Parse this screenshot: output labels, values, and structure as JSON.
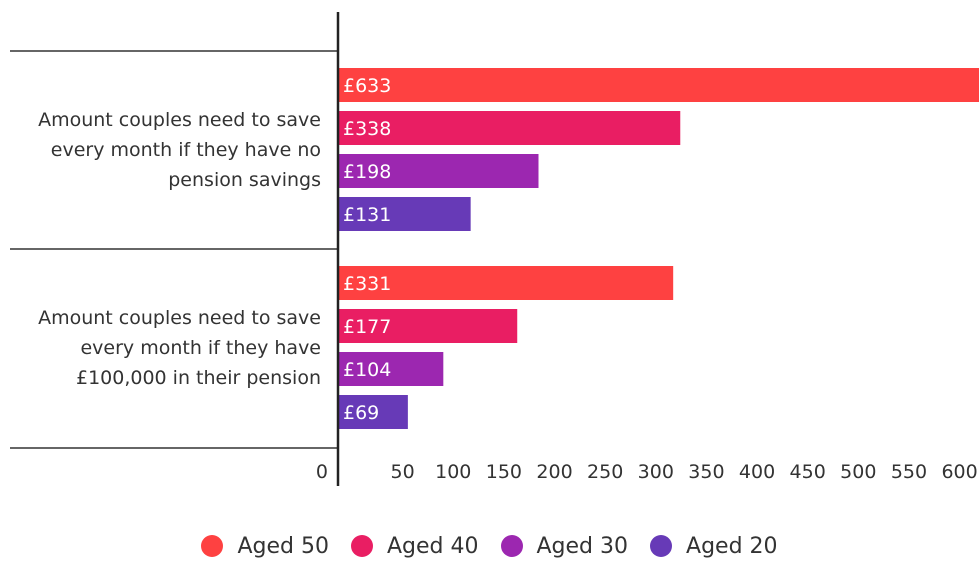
{
  "chart_data": {
    "type": "bar",
    "orientation": "horizontal",
    "categories": [
      "Amount couples need to save every month if they have no pension savings",
      "Amount couples need to save every month if they have £100,000 in their pension"
    ],
    "category_lines": [
      [
        "Amount couples need to save",
        "every month if they have no",
        "pension savings"
      ],
      [
        "Amount couples need to save",
        "every month if they have",
        "£100,000 in their pension"
      ]
    ],
    "series": [
      {
        "name": "Aged 50",
        "color": "#fe4141",
        "values": [
          633,
          331
        ],
        "labels": [
          "£633",
          "£331"
        ]
      },
      {
        "name": "Aged 40",
        "color": "#e91e63",
        "values": [
          338,
          177
        ],
        "labels": [
          "£338",
          "£177"
        ]
      },
      {
        "name": "Aged 30",
        "color": "#9c27b0",
        "values": [
          198,
          104
        ],
        "labels": [
          "£198",
          "£104"
        ]
      },
      {
        "name": "Aged 20",
        "color": "#673ab7",
        "values": [
          131,
          69
        ],
        "labels": [
          "£131",
          "£69"
        ]
      }
    ],
    "x_ticks": [
      0,
      50,
      100,
      150,
      200,
      250,
      300,
      350,
      400,
      450,
      500,
      550,
      600
    ],
    "xlim": [
      0,
      633
    ],
    "title": "",
    "xlabel": "",
    "ylabel": "",
    "legend_position": "bottom",
    "grid": false
  }
}
